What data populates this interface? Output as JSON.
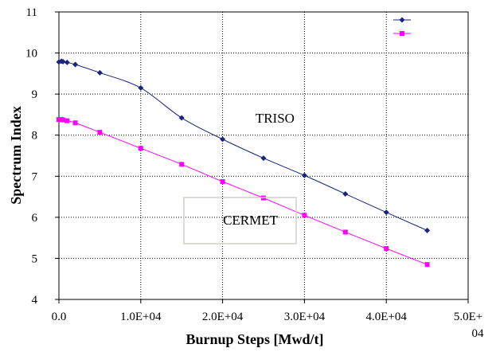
{
  "chart_data": {
    "type": "line",
    "xlabel": "Burnup Steps [Mwd/t]",
    "ylabel": "Spectrum Index",
    "xlim": [
      0,
      50000
    ],
    "ylim": [
      4,
      11
    ],
    "x_ticks": [
      0,
      10000,
      20000,
      30000,
      40000,
      50000
    ],
    "x_tick_labels": [
      "0.0",
      "1.0E+04",
      "2.0E+04",
      "3.0E+04",
      "4.0E+04",
      "5.0E+\n04"
    ],
    "y_ticks": [
      4,
      5,
      6,
      7,
      8,
      9,
      10,
      11
    ],
    "y_tick_labels": [
      "4",
      "5",
      "6",
      "7",
      "8",
      "9",
      "10",
      "11"
    ],
    "grid": true,
    "legend_position": "top-right",
    "series": [
      {
        "color": "#1a237e",
        "marker": "diamond",
        "points": [
          [
            0,
            9.78
          ],
          [
            300,
            9.8
          ],
          [
            500,
            9.79
          ],
          [
            1000,
            9.77
          ],
          [
            2000,
            9.72
          ],
          [
            5000,
            9.52
          ],
          [
            10000,
            9.15
          ],
          [
            15000,
            8.42
          ],
          [
            20000,
            7.9
          ],
          [
            25000,
            7.44
          ],
          [
            30000,
            7.02
          ],
          [
            35000,
            6.57
          ],
          [
            40000,
            6.12
          ],
          [
            45000,
            5.68
          ]
        ]
      },
      {
        "color": "#ff00ff",
        "marker": "square",
        "points": [
          [
            0,
            8.38
          ],
          [
            300,
            8.38
          ],
          [
            500,
            8.37
          ],
          [
            1000,
            8.35
          ],
          [
            2000,
            8.3
          ],
          [
            5000,
            8.07
          ],
          [
            10000,
            7.68
          ],
          [
            15000,
            7.29
          ],
          [
            20000,
            6.87
          ],
          [
            25000,
            6.47
          ],
          [
            30000,
            6.05
          ],
          [
            35000,
            5.64
          ],
          [
            40000,
            5.24
          ],
          [
            45000,
            4.85
          ]
        ]
      }
    ],
    "annotations": [
      {
        "text": "TRISO",
        "x": 26400,
        "y": 8.3
      },
      {
        "text": "CERMET",
        "x": 23400,
        "y": 5.82
      }
    ]
  }
}
